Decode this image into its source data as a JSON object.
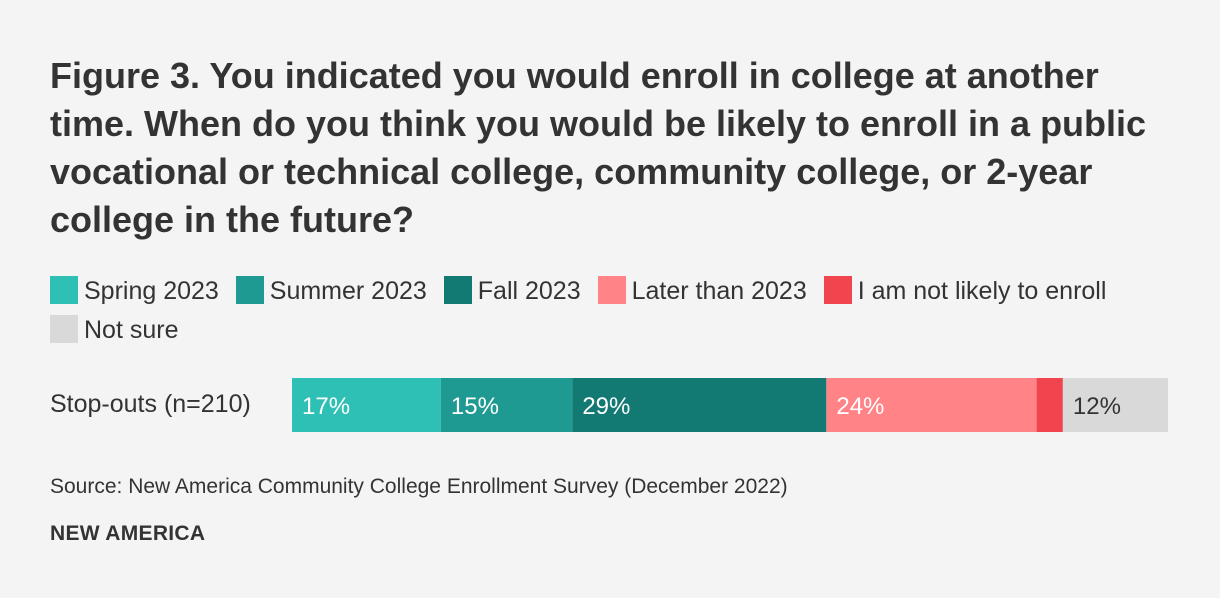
{
  "chart_data": {
    "type": "bar",
    "stacked": true,
    "orientation": "horizontal",
    "title": "Figure 3. You indicated you would enroll in college at another time. When do you think you would be likely to enroll in a public vocational or technical college, community college, or 2-year college in the future?",
    "categories": [
      "Stop-outs (n=210)"
    ],
    "series": [
      {
        "name": "Spring 2023",
        "values": [
          17
        ],
        "label": "17%",
        "color": "#2ebfb5",
        "label_color": "#ffffff"
      },
      {
        "name": "Summer 2023",
        "values": [
          15
        ],
        "label": "15%",
        "color": "#1f9a92",
        "label_color": "#ffffff"
      },
      {
        "name": "Fall 2023",
        "values": [
          29
        ],
        "label": "29%",
        "color": "#127a72",
        "label_color": "#ffffff"
      },
      {
        "name": "Later than 2023",
        "values": [
          24
        ],
        "label": "24%",
        "color": "#ff8387",
        "label_color": "#ffffff"
      },
      {
        "name": "I am not likely to enroll",
        "values": [
          3
        ],
        "label": "",
        "color": "#f0444e",
        "label_color": "#ffffff"
      },
      {
        "name": "Not sure",
        "values": [
          12
        ],
        "label": "12%",
        "color": "#d9d9d9",
        "label_color": "#333333"
      }
    ],
    "legend_position": "top",
    "source": "Source: New America Community College Enrollment Survey (December 2022)"
  },
  "brand": "NEW AMERICA"
}
